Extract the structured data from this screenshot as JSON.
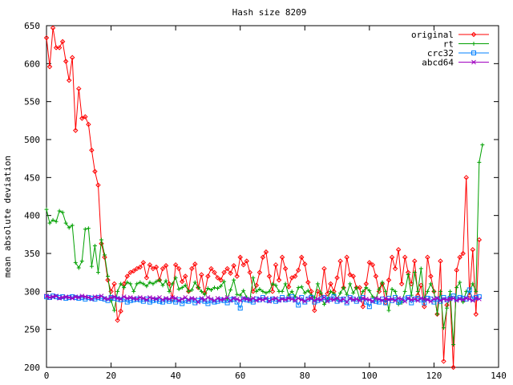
{
  "chart_data": {
    "type": "line",
    "title": "Hash size 8209",
    "xlabel": "",
    "ylabel": "mean absolute deviation",
    "xlim": [
      0,
      140
    ],
    "ylim": [
      200,
      650
    ],
    "xticks": [
      0,
      20,
      40,
      60,
      80,
      100,
      120,
      140
    ],
    "yticks": [
      200,
      250,
      300,
      350,
      400,
      450,
      500,
      550,
      600,
      650
    ],
    "grid": false,
    "legend": "top-right",
    "series": [
      {
        "name": "original",
        "color": "#ff0000",
        "marker": "diamond",
        "values": [
          634,
          596,
          647,
          621,
          621,
          629,
          603,
          578,
          608,
          512,
          567,
          528,
          530,
          520,
          486,
          458,
          440,
          363,
          345,
          315,
          300,
          310,
          262,
          274,
          310,
          320,
          325,
          327,
          330,
          332,
          338,
          318,
          335,
          330,
          332,
          315,
          330,
          334,
          310,
          290,
          335,
          330,
          313,
          320,
          300,
          330,
          336,
          305,
          322,
          298,
          320,
          330,
          325,
          318,
          315,
          325,
          330,
          324,
          334,
          320,
          345,
          335,
          340,
          325,
          300,
          308,
          325,
          345,
          352,
          320,
          300,
          335,
          315,
          345,
          330,
          306,
          318,
          320,
          328,
          345,
          336,
          312,
          300,
          275,
          300,
          295,
          330,
          297,
          310,
          300,
          318,
          340,
          305,
          345,
          322,
          320,
          305,
          305,
          280,
          310,
          338,
          335,
          320,
          300,
          310,
          285,
          315,
          345,
          330,
          355,
          310,
          345,
          325,
          310,
          340,
          295,
          308,
          280,
          345,
          320,
          300,
          270,
          340,
          208,
          282,
          290,
          200,
          328,
          345,
          350,
          450,
          295,
          355,
          270,
          368
        ]
      },
      {
        "name": "rt",
        "color": "#00a000",
        "marker": "plus",
        "values": [
          408,
          390,
          394,
          392,
          406,
          404,
          390,
          384,
          387,
          338,
          331,
          340,
          382,
          383,
          333,
          360,
          325,
          368,
          348,
          320,
          288,
          275,
          300,
          310,
          305,
          312,
          310,
          300,
          310,
          312,
          310,
          307,
          312,
          310,
          313,
          315,
          308,
          314,
          300,
          310,
          318,
          303,
          305,
          308,
          300,
          302,
          312,
          305,
          300,
          296,
          304,
          302,
          305,
          304,
          307,
          313,
          290,
          302,
          315,
          296,
          295,
          301,
          292,
          289,
          318,
          300,
          303,
          300,
          298,
          300,
          310,
          308,
          300,
          300,
          310,
          295,
          300,
          293,
          305,
          306,
          298,
          301,
          295,
          292,
          310,
          298,
          283,
          290,
          300,
          297,
          290,
          298,
          305,
          296,
          310,
          298,
          305,
          290,
          300,
          305,
          301,
          293,
          290,
          303,
          312,
          300,
          275,
          303,
          300,
          283,
          285,
          300,
          322,
          295,
          325,
          300,
          330,
          290,
          300,
          310,
          300,
          270,
          300,
          252,
          278,
          300,
          230,
          305,
          312,
          286,
          300,
          300,
          310,
          300,
          470,
          493
        ]
      },
      {
        "name": "crc32",
        "color": "#0080ff",
        "marker": "square",
        "values": [
          293,
          292,
          294,
          293,
          292,
          293,
          291,
          292,
          293,
          292,
          291,
          292,
          290,
          292,
          291,
          290,
          292,
          291,
          290,
          288,
          292,
          291,
          290,
          289,
          290,
          286,
          288,
          289,
          290,
          289,
          287,
          290,
          286,
          288,
          289,
          287,
          286,
          289,
          287,
          289,
          286,
          289,
          284,
          288,
          287,
          289,
          285,
          288,
          289,
          287,
          284,
          288,
          286,
          287,
          289,
          288,
          285,
          289,
          290,
          286,
          278,
          290,
          289,
          288,
          286,
          290,
          289,
          292,
          289,
          288,
          290,
          287,
          289,
          292,
          289,
          290,
          293,
          289,
          282,
          292,
          286,
          290,
          292,
          286,
          288,
          290,
          292,
          289,
          290,
          293,
          287,
          289,
          290,
          285,
          292,
          290,
          287,
          290,
          292,
          286,
          280,
          288,
          287,
          286,
          290,
          285,
          291,
          288,
          292,
          286,
          288,
          290,
          292,
          285,
          290,
          291,
          289,
          285,
          291,
          290,
          286,
          290,
          287,
          292,
          289,
          291,
          294,
          290,
          292,
          291,
          290,
          302,
          290,
          292,
          293
        ]
      },
      {
        "name": "abcd64",
        "color": "#a000c0",
        "marker": "x",
        "values": [
          294,
          292,
          293,
          294,
          291,
          292,
          293,
          292,
          291,
          293,
          292,
          294,
          293,
          292,
          290,
          293,
          292,
          294,
          291,
          290,
          292,
          293,
          291,
          290,
          293,
          291,
          292,
          291,
          290,
          292,
          291,
          289,
          292,
          291,
          290,
          292,
          289,
          291,
          290,
          292,
          291,
          288,
          290,
          292,
          289,
          291,
          290,
          286,
          291,
          289,
          292,
          290,
          288,
          291,
          289,
          290,
          292,
          288,
          291,
          290,
          288,
          291,
          290,
          289,
          291,
          288,
          290,
          289,
          291,
          287,
          290,
          291,
          288,
          290,
          289,
          291,
          290,
          288,
          291,
          289,
          287,
          290,
          291,
          288,
          290,
          289,
          292,
          287,
          290,
          289,
          291,
          288,
          290,
          286,
          291,
          289,
          290,
          288,
          291,
          290,
          289,
          287,
          291,
          290,
          288,
          291,
          289,
          290,
          288,
          291,
          290,
          287,
          291,
          289,
          290,
          288,
          291,
          290,
          289,
          287,
          290,
          291,
          288,
          290,
          289,
          290,
          291,
          288,
          290,
          289,
          291,
          290,
          288,
          291,
          290
        ]
      }
    ]
  }
}
